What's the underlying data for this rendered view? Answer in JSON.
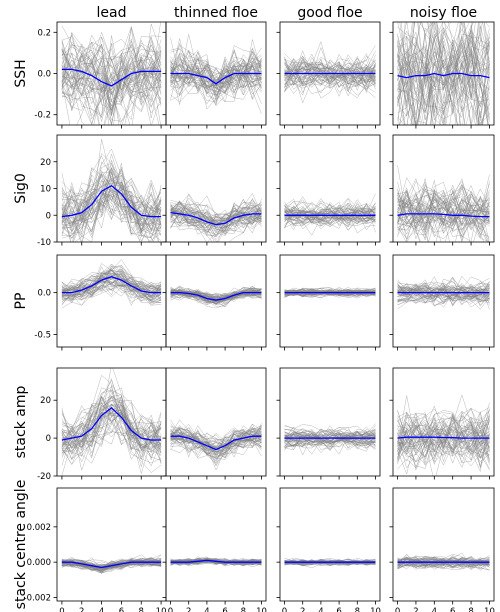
{
  "chart_data": {
    "type": "line",
    "layout": "5 rows x 4 columns of small-multiple line panels; grey = individual waveforms, blue = class mean",
    "column_titles": [
      "lead",
      "thinned floe",
      "good floe",
      "noisy floe"
    ],
    "row_labels": [
      "SSH",
      "Sig0",
      "PP",
      "stack amp",
      "stack centre angle"
    ],
    "x": [
      0,
      1,
      2,
      3,
      4,
      5,
      6,
      7,
      8,
      9,
      10
    ],
    "x_ticks": [
      "0",
      "2",
      "4",
      "6",
      "8",
      "10"
    ],
    "colors": {
      "individual": "#808080",
      "mean": "#0000ff",
      "axes": "#000000"
    },
    "rows": [
      {
        "label": "SSH",
        "ylim": [
          -0.25,
          0.25
        ],
        "y_ticks": [
          "0.2",
          "0.0",
          "-0.2"
        ],
        "y_tick_values": [
          0.2,
          0.0,
          -0.2
        ],
        "noise": [
          0.09,
          0.05,
          0.04,
          0.15
        ],
        "series": [
          {
            "column": "lead",
            "values": [
              0.02,
              0.02,
              0.01,
              -0.01,
              -0.04,
              -0.06,
              -0.03,
              0.0,
              0.01,
              0.01,
              0.01
            ]
          },
          {
            "column": "thinned floe",
            "values": [
              0.0,
              0.0,
              0.0,
              -0.01,
              -0.02,
              -0.05,
              -0.02,
              0.0,
              0.0,
              0.0,
              0.0
            ]
          },
          {
            "column": "good floe",
            "values": [
              0.0,
              0.0,
              0.0,
              0.0,
              0.0,
              0.0,
              0.0,
              0.0,
              0.0,
              0.0,
              0.0
            ]
          },
          {
            "column": "noisy floe",
            "values": [
              -0.01,
              -0.02,
              -0.01,
              -0.01,
              0.0,
              -0.01,
              0.0,
              0.0,
              -0.01,
              -0.01,
              -0.02
            ]
          }
        ]
      },
      {
        "label": "Sig0",
        "ylim": [
          -10,
          30
        ],
        "y_ticks": [
          "20",
          "10",
          "0",
          "-10"
        ],
        "y_tick_values": [
          20,
          10,
          0,
          -10
        ],
        "noise": [
          5,
          2.5,
          2,
          5
        ],
        "series": [
          {
            "column": "lead",
            "values": [
              -0.5,
              0,
              1,
              4,
              9,
              11,
              8,
              3,
              0,
              -0.5,
              -0.5
            ]
          },
          {
            "column": "thinned floe",
            "values": [
              1,
              0.5,
              0,
              -1,
              -2.5,
              -3.5,
              -3,
              -1,
              0,
              0.5,
              0.5
            ]
          },
          {
            "column": "good floe",
            "values": [
              0,
              0,
              0,
              0,
              0,
              0,
              0,
              0,
              0,
              0,
              0
            ]
          },
          {
            "column": "noisy floe",
            "values": [
              0,
              0.5,
              0.5,
              0.5,
              0.5,
              0.3,
              0,
              0,
              -0.3,
              -0.5,
              -0.5
            ]
          }
        ]
      },
      {
        "label": "PP",
        "ylim": [
          -0.65,
          0.45
        ],
        "y_ticks": [
          "0.0",
          "-0.5"
        ],
        "y_tick_values": [
          0.0,
          -0.5
        ],
        "noise": [
          0.06,
          0.03,
          0.02,
          0.06
        ],
        "series": [
          {
            "column": "lead",
            "values": [
              0,
              0,
              0.03,
              0.08,
              0.15,
              0.19,
              0.15,
              0.08,
              0.02,
              0,
              0
            ]
          },
          {
            "column": "thinned floe",
            "values": [
              0,
              0,
              -0.01,
              -0.03,
              -0.07,
              -0.09,
              -0.07,
              -0.03,
              0,
              0,
              0
            ]
          },
          {
            "column": "good floe",
            "values": [
              0,
              0,
              0,
              0,
              0,
              0,
              0,
              0,
              0,
              0,
              0
            ]
          },
          {
            "column": "noisy floe",
            "values": [
              0,
              0,
              0,
              0,
              0,
              0,
              0,
              0,
              0,
              0,
              0
            ]
          }
        ]
      },
      {
        "label": "stack amp",
        "ylim": [
          -20,
          37
        ],
        "y_ticks": [
          "20",
          "0",
          "-20"
        ],
        "y_tick_values": [
          20,
          0,
          -20
        ],
        "noise": [
          6,
          3,
          2.5,
          7
        ],
        "series": [
          {
            "column": "lead",
            "values": [
              -1,
              0,
              1,
              5,
              12,
              16,
              11,
              4,
              0,
              -1,
              -1
            ]
          },
          {
            "column": "thinned floe",
            "values": [
              1,
              1,
              0,
              -2,
              -4,
              -6,
              -4,
              -1,
              0,
              1,
              1
            ]
          },
          {
            "column": "good floe",
            "values": [
              0,
              0,
              0,
              0,
              0,
              0,
              0,
              0,
              0,
              0,
              0
            ]
          },
          {
            "column": "noisy floe",
            "values": [
              0,
              0.5,
              0.5,
              0.5,
              0.5,
              0.3,
              0.2,
              0,
              0,
              0,
              0
            ]
          }
        ]
      },
      {
        "label": "stack centre angle",
        "ylim": [
          -0.0022,
          0.0042
        ],
        "y_ticks": [
          "0.002",
          "0.000",
          "-0.002"
        ],
        "y_tick_values": [
          0.002,
          0.0,
          -0.002
        ],
        "noise": [
          0.00012,
          8e-05,
          7e-05,
          0.00015
        ],
        "series": [
          {
            "column": "lead",
            "values": [
              0,
              0,
              -0.0001,
              -0.0002,
              -0.0003,
              -0.0002,
              -0.0001,
              0,
              0,
              0,
              0
            ]
          },
          {
            "column": "thinned floe",
            "values": [
              0,
              0,
              0,
              5e-05,
              0.0001,
              5e-05,
              0,
              0,
              0,
              0,
              0
            ]
          },
          {
            "column": "good floe",
            "values": [
              0,
              0,
              0,
              0,
              0,
              0,
              0,
              0,
              0,
              0,
              0
            ]
          },
          {
            "column": "noisy floe",
            "values": [
              0,
              0,
              0,
              0,
              0,
              0,
              0,
              0,
              0,
              0,
              0
            ]
          }
        ]
      }
    ]
  }
}
